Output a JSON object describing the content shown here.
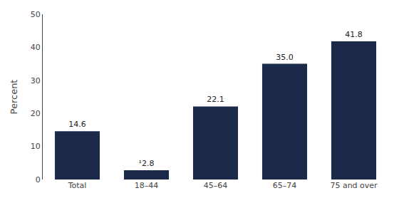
{
  "chart_data": {
    "type": "bar",
    "categories": [
      "Total",
      "18–44",
      "45–64",
      "65–74",
      "75 and over"
    ],
    "values": [
      14.6,
      2.8,
      22.1,
      35.0,
      41.8
    ],
    "value_labels": [
      "14.6",
      "¹2.8",
      "22.1",
      "35.0",
      "41.8"
    ],
    "data_labels": true,
    "color": "#1B2A4A",
    "ylabel": "Percent",
    "ylim": [
      0,
      50
    ],
    "yticks": [
      0,
      10,
      20,
      30,
      40,
      50
    ],
    "grid": false
  }
}
